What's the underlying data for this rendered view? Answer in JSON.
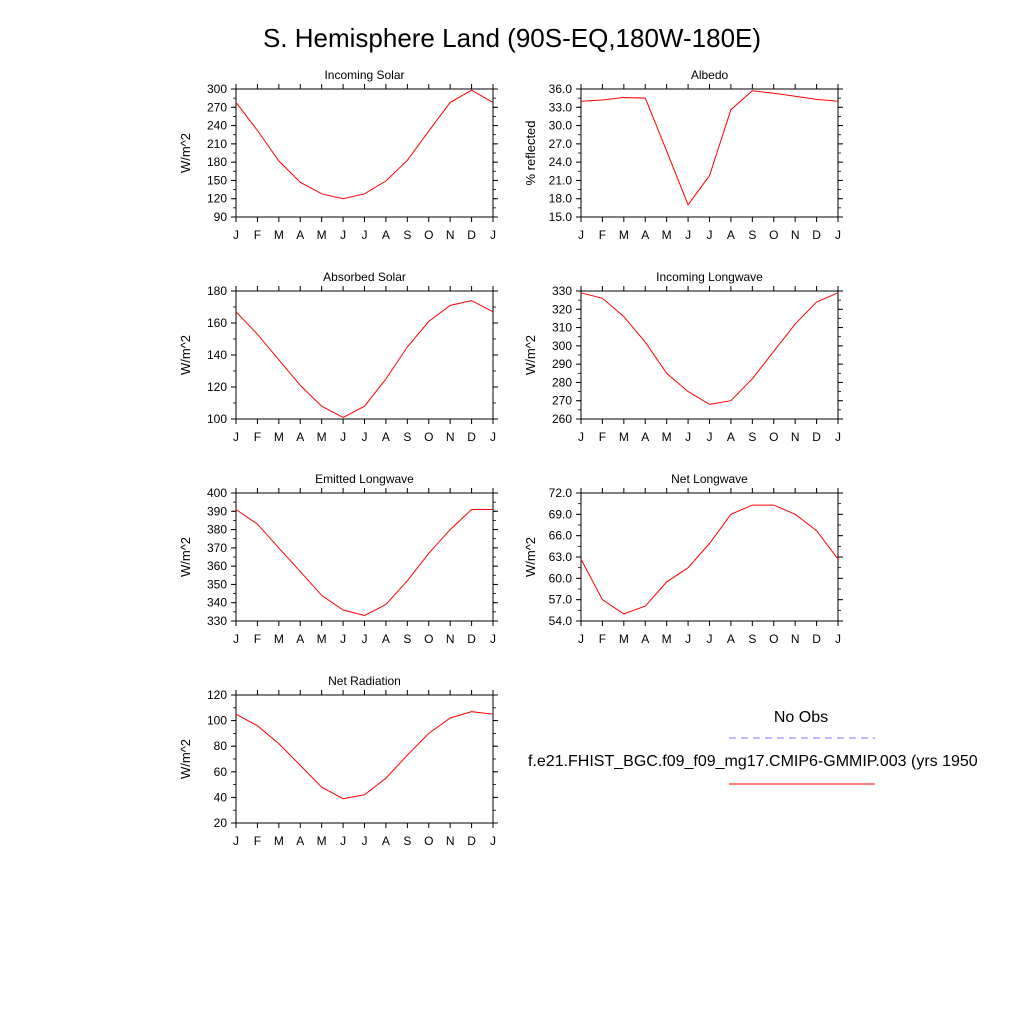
{
  "title": "S. Hemisphere Land (90S-EQ,180W-180E)",
  "legend": {
    "obs_label": "No Obs",
    "model_label": "f.e21.FHIST_BGC.f09_f09_mg17.CMIP6-GMMIP.003 (yrs 1950",
    "obs_color": "#7b7bff",
    "model_color": "#ff0000"
  },
  "colors": {
    "line": "#ff0000",
    "axis": "#000000"
  },
  "chart_data": [
    {
      "type": "line",
      "title": "Incoming Solar",
      "ylabel": "W/m^2",
      "categories": [
        "J",
        "F",
        "M",
        "A",
        "M",
        "J",
        "J",
        "A",
        "S",
        "O",
        "N",
        "D",
        "J"
      ],
      "ylim": [
        90,
        300
      ],
      "yticks": [
        "90",
        "120",
        "150",
        "180",
        "210",
        "240",
        "270",
        "300"
      ],
      "yminor": 15,
      "values": [
        278,
        232,
        182,
        147,
        128,
        120,
        128,
        149,
        183,
        231,
        278,
        298,
        278
      ]
    },
    {
      "type": "line",
      "title": "Albedo",
      "ylabel": "% reflected",
      "categories": [
        "J",
        "F",
        "M",
        "A",
        "M",
        "J",
        "J",
        "A",
        "S",
        "O",
        "N",
        "D",
        "J"
      ],
      "ylim": [
        15,
        36
      ],
      "yticks": [
        "15.0",
        "18.0",
        "21.0",
        "24.0",
        "27.0",
        "30.0",
        "33.0",
        "36.0"
      ],
      "yminor": 1.5,
      "values": [
        34.0,
        34.2,
        34.6,
        34.5,
        25.8,
        17.0,
        21.8,
        32.6,
        35.7,
        35.3,
        34.8,
        34.3,
        34.0
      ]
    },
    {
      "type": "line",
      "title": "Absorbed Solar",
      "ylabel": "W/m^2",
      "categories": [
        "J",
        "F",
        "M",
        "A",
        "M",
        "J",
        "J",
        "A",
        "S",
        "O",
        "N",
        "D",
        "J"
      ],
      "ylim": [
        100,
        180
      ],
      "yticks": [
        "100",
        "120",
        "140",
        "160",
        "180"
      ],
      "yminor": 10,
      "values": [
        167,
        153,
        137,
        121,
        108,
        101,
        108,
        125,
        145,
        161,
        171,
        174,
        167
      ]
    },
    {
      "type": "line",
      "title": "Incoming Longwave",
      "ylabel": "W/m^2",
      "categories": [
        "J",
        "F",
        "M",
        "A",
        "M",
        "J",
        "J",
        "A",
        "S",
        "O",
        "N",
        "D",
        "J"
      ],
      "ylim": [
        260,
        330
      ],
      "yticks": [
        "260",
        "270",
        "280",
        "290",
        "300",
        "310",
        "320",
        "330"
      ],
      "yminor": 5,
      "values": [
        329,
        326,
        316,
        302,
        285,
        275,
        268,
        270,
        282,
        297,
        312,
        324,
        329
      ]
    },
    {
      "type": "line",
      "title": "Emitted Longwave",
      "ylabel": "W/m^2",
      "categories": [
        "J",
        "F",
        "M",
        "A",
        "M",
        "J",
        "J",
        "A",
        "S",
        "O",
        "N",
        "D",
        "J"
      ],
      "ylim": [
        330,
        400
      ],
      "yticks": [
        "330",
        "340",
        "350",
        "360",
        "370",
        "380",
        "390",
        "400"
      ],
      "yminor": 5,
      "values": [
        391,
        383,
        370,
        357,
        344,
        336,
        333,
        339,
        352,
        367,
        380,
        391,
        391
      ]
    },
    {
      "type": "line",
      "title": "Net Longwave",
      "ylabel": "W/m^2",
      "categories": [
        "J",
        "F",
        "M",
        "A",
        "M",
        "J",
        "J",
        "A",
        "S",
        "O",
        "N",
        "D",
        "J"
      ],
      "ylim": [
        54,
        72
      ],
      "yticks": [
        "54.0",
        "57.0",
        "60.0",
        "63.0",
        "66.0",
        "69.0",
        "72.0"
      ],
      "yminor": 1.5,
      "values": [
        62.7,
        57.0,
        55.0,
        56.1,
        59.5,
        61.5,
        64.9,
        69.0,
        70.3,
        70.3,
        69.0,
        66.7,
        62.7
      ]
    },
    {
      "type": "line",
      "title": "Net Radiation",
      "ylabel": "W/m^2",
      "categories": [
        "J",
        "F",
        "M",
        "A",
        "M",
        "J",
        "J",
        "A",
        "S",
        "O",
        "N",
        "D",
        "J"
      ],
      "ylim": [
        20,
        120
      ],
      "yticks": [
        "20",
        "40",
        "60",
        "80",
        "100",
        "120"
      ],
      "yminor": 10,
      "values": [
        105,
        96,
        82,
        65,
        48,
        39,
        42,
        55,
        73,
        90,
        102,
        107,
        105
      ]
    }
  ]
}
